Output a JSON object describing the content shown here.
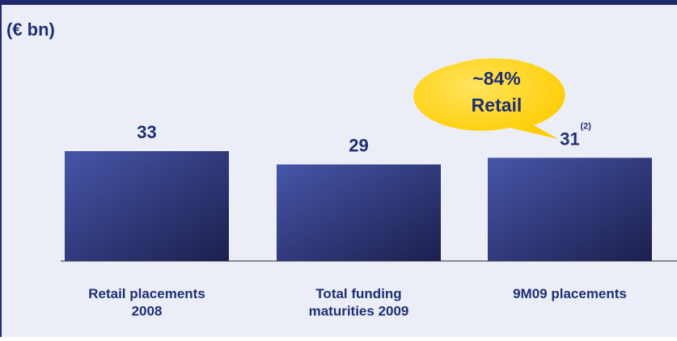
{
  "chart_data": {
    "type": "bar",
    "unit_label": "(€ bn)",
    "categories": [
      "Retail placements\n2008",
      "Total funding\nmaturities 2009",
      "9M09 placements"
    ],
    "values": [
      33,
      29,
      31
    ],
    "color": "#4656a8",
    "value_notes": [
      null,
      null,
      "(2)"
    ],
    "callout": {
      "lines": [
        "~84%",
        "Retail"
      ],
      "color": "#ffcc00"
    }
  }
}
